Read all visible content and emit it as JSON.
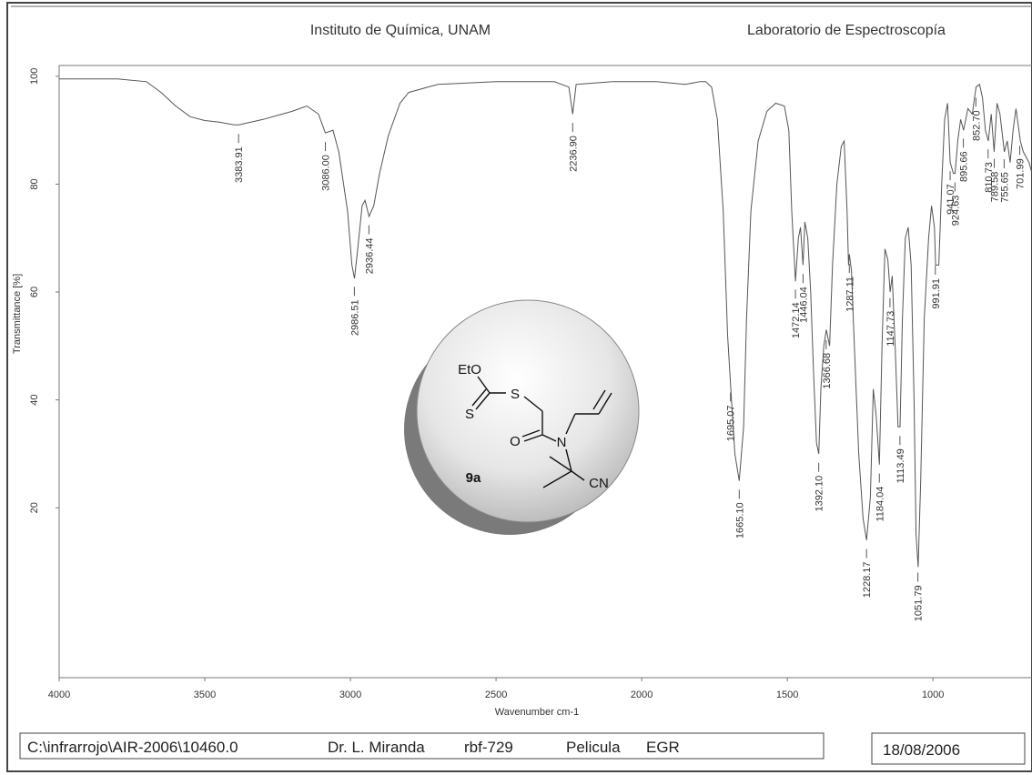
{
  "chart_data": {
    "type": "line",
    "title": "Instituto de Química, UNAM",
    "subtitle": "Laboratorio de Espectroscopía",
    "x_label": "Wavenumber cm-1",
    "y_label": "Transmittance [%]",
    "color": "#555555",
    "xlim": [
      4000,
      660
    ],
    "xticks": [
      4000,
      3500,
      3000,
      2500,
      2000,
      1500,
      1000
    ],
    "ylim": [
      -11.5,
      102
    ],
    "yticks": [
      20,
      40,
      60,
      80,
      100
    ],
    "grid": false,
    "x": [
      4000,
      3800,
      3700,
      3650,
      3600,
      3550,
      3500,
      3450,
      3400,
      3383,
      3300,
      3200,
      3150,
      3110,
      3086,
      3060,
      3040,
      3010,
      2995,
      2986,
      2975,
      2960,
      2950,
      2936,
      2920,
      2900,
      2870,
      2830,
      2800,
      2700,
      2500,
      2300,
      2250,
      2237,
      2225,
      2100,
      1950,
      1850,
      1800,
      1780,
      1760,
      1740,
      1720,
      1705,
      1695,
      1680,
      1665,
      1650,
      1640,
      1625,
      1600,
      1570,
      1540,
      1510,
      1495,
      1485,
      1472,
      1462,
      1455,
      1446,
      1440,
      1430,
      1420,
      1410,
      1400,
      1392,
      1385,
      1375,
      1366,
      1355,
      1345,
      1330,
      1315,
      1305,
      1295,
      1290,
      1287,
      1280,
      1270,
      1255,
      1240,
      1228,
      1215,
      1205,
      1195,
      1184,
      1175,
      1165,
      1155,
      1147,
      1140,
      1130,
      1120,
      1113,
      1105,
      1095,
      1085,
      1075,
      1065,
      1058,
      1051,
      1042,
      1030,
      1015,
      1005,
      995,
      991,
      980,
      970,
      960,
      950,
      941,
      930,
      924,
      915,
      905,
      895,
      880,
      865,
      852,
      840,
      830,
      820,
      810,
      800,
      790,
      780,
      770,
      755,
      745,
      735,
      725,
      715,
      700,
      690,
      670,
      660
    ],
    "values": [
      99.5,
      99.5,
      99,
      97,
      94.5,
      92.5,
      91.8,
      91.5,
      91,
      91,
      92,
      93.5,
      94.5,
      93,
      89.5,
      90,
      86,
      75,
      65,
      62.5,
      68,
      76,
      77,
      74,
      76,
      82,
      89,
      95,
      97,
      98.5,
      99,
      99,
      98,
      93,
      98.5,
      99,
      99,
      98.5,
      99,
      99,
      98,
      92,
      75,
      52,
      43,
      30,
      25,
      35,
      55,
      75,
      88,
      93.5,
      95,
      94.5,
      90,
      75,
      62,
      70,
      72,
      65,
      73,
      70,
      60,
      45,
      32,
      30,
      42,
      50,
      53,
      50,
      65,
      80,
      87,
      88,
      75,
      65,
      67,
      64,
      50,
      30,
      18,
      14,
      22,
      42,
      37,
      28,
      50,
      68,
      66,
      60,
      63,
      50,
      35,
      35,
      55,
      70,
      72,
      65,
      40,
      15,
      9,
      25,
      55,
      70,
      76,
      72,
      65,
      65,
      80,
      92,
      95,
      84,
      82,
      82,
      88,
      92,
      90,
      94,
      93,
      98,
      98.5,
      96,
      90,
      88,
      93,
      86,
      95,
      93,
      86,
      88,
      84,
      90,
      94,
      88,
      86,
      84,
      82
    ],
    "annotations": [
      {
        "value": 3383.91,
        "label": "3383.91"
      },
      {
        "value": 3086.0,
        "label": "3086.00"
      },
      {
        "value": 2986.51,
        "label": "2986.51"
      },
      {
        "value": 2936.44,
        "label": "2936.44"
      },
      {
        "value": 2236.9,
        "label": "2236.90"
      },
      {
        "value": 1695.07,
        "label": "1695.07"
      },
      {
        "value": 1665.1,
        "label": "1665.10"
      },
      {
        "value": 1472.14,
        "label": "1472.14"
      },
      {
        "value": 1446.04,
        "label": "1446.04"
      },
      {
        "value": 1392.1,
        "label": "1392.10"
      },
      {
        "value": 1366.68,
        "label": "1366.68"
      },
      {
        "value": 1287.11,
        "label": "1287.11"
      },
      {
        "value": 1228.17,
        "label": "1228.17"
      },
      {
        "value": 1184.04,
        "label": "1184.04"
      },
      {
        "value": 1147.73,
        "label": "1147.73"
      },
      {
        "value": 1113.49,
        "label": "1113.49"
      },
      {
        "value": 1051.79,
        "label": "1051.79"
      },
      {
        "value": 991.91,
        "label": "991.91"
      },
      {
        "value": 941.07,
        "label": "941.07"
      },
      {
        "value": 924.63,
        "label": "924.63"
      },
      {
        "value": 895.66,
        "label": "895.66"
      },
      {
        "value": 852.7,
        "label": "852.70"
      },
      {
        "value": 810.73,
        "label": "810.73"
      },
      {
        "value": 789.58,
        "label": "789.58"
      },
      {
        "value": 755.65,
        "label": "755.65"
      },
      {
        "value": 701.99,
        "label": "701.99"
      }
    ]
  },
  "compound": {
    "label": "9a",
    "atoms": [
      "EtO",
      "S",
      "S",
      "O",
      "N",
      "CN"
    ]
  },
  "footer": {
    "path": "C:\\infrarrojo\\AIR-2006\\10460.0",
    "operator": "Dr. L. Miranda",
    "sample": "rbf-729",
    "method": "Pelicula",
    "code": "EGR",
    "date": "18/08/2006"
  }
}
